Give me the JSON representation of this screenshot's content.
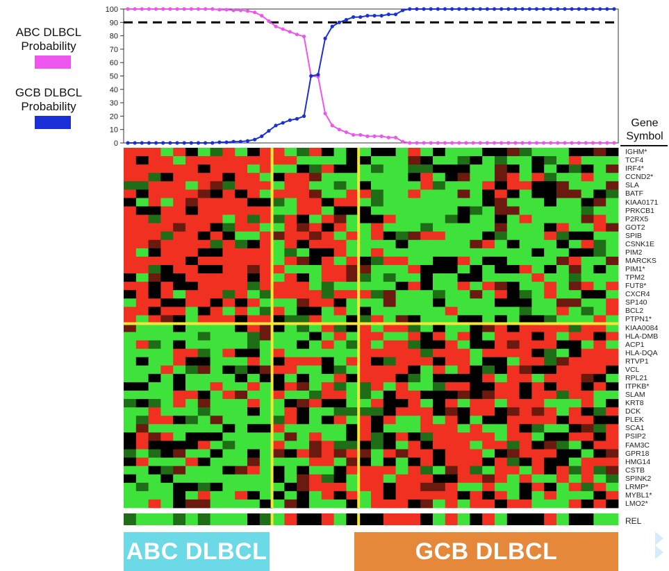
{
  "legend": {
    "abc_label_line1": "ABC DLBCL",
    "abc_label_line2": "Probability",
    "abc_color": "#ee55ee",
    "gcb_label_line1": "GCB DLBCL",
    "gcb_label_line2": "Probability",
    "gcb_color": "#1a2fd6"
  },
  "chart_data": [
    {
      "type": "line",
      "title": "",
      "xlabel": "",
      "ylabel": "",
      "ylim": [
        0,
        100
      ],
      "yticks": [
        0,
        10,
        20,
        30,
        40,
        50,
        60,
        70,
        80,
        90,
        100
      ],
      "threshold": 90,
      "threshold_style": "dashed",
      "x": [
        1,
        2,
        3,
        4,
        5,
        6,
        7,
        8,
        9,
        10,
        11,
        12,
        13,
        14,
        15,
        16,
        17,
        18,
        19,
        20,
        21,
        22,
        23,
        24,
        25,
        26,
        27,
        28,
        29,
        30,
        31,
        32,
        33,
        34,
        35,
        36,
        37,
        38,
        39,
        40,
        41,
        42,
        43,
        44,
        45,
        46,
        47,
        48,
        49,
        50,
        51,
        52,
        53,
        54,
        55,
        56,
        57,
        58,
        59,
        60,
        61,
        62,
        63,
        64,
        65,
        66,
        67,
        68,
        69,
        70
      ],
      "series": [
        {
          "name": "ABC DLBCL Probability",
          "color": "#ee55ee",
          "values": [
            100,
            100,
            100,
            100,
            100,
            100,
            100,
            100,
            100,
            100,
            100,
            100,
            100,
            99.5,
            99.5,
            99,
            99,
            98.5,
            97.5,
            95,
            91,
            87,
            85,
            83,
            81,
            79.5,
            50,
            49.5,
            22,
            13,
            10,
            8,
            6,
            6,
            5,
            5,
            5,
            4,
            4,
            1,
            0,
            0,
            0,
            0,
            0,
            0,
            0,
            0,
            0,
            0,
            0,
            0,
            0,
            0,
            0,
            0,
            0,
            0,
            0,
            0,
            0,
            0,
            0,
            0,
            0,
            0,
            0,
            0,
            0,
            0
          ]
        },
        {
          "name": "GCB DLBCL Probability",
          "color": "#1a2fd6",
          "values": [
            0,
            0,
            0,
            0,
            0,
            0,
            0,
            0,
            0,
            0,
            0,
            0,
            0,
            0.5,
            0.5,
            1,
            1,
            1.5,
            2.5,
            5,
            9,
            13,
            15,
            17,
            18,
            20,
            50,
            51,
            78,
            87,
            90,
            92,
            94,
            94,
            95,
            95,
            95,
            96,
            96,
            99,
            100,
            100,
            100,
            100,
            100,
            100,
            100,
            100,
            100,
            100,
            100,
            100,
            100,
            100,
            100,
            100,
            100,
            100,
            100,
            100,
            100,
            100,
            100,
            100,
            100,
            100,
            100,
            100,
            100,
            100
          ]
        }
      ]
    },
    {
      "type": "heatmap",
      "title": "",
      "xlabel": "",
      "ylabel": "Gene Symbol",
      "rows": [
        "IGHM*",
        "TCF4",
        "IRF4*",
        "CCND2*",
        "SLA",
        "BATF",
        "KIAA0171",
        "PRKCB1",
        "P2RX5",
        "GOT2",
        "SPIB",
        "CSNK1E",
        "PIM2",
        "MARCKS",
        "PIM1*",
        "TPM2",
        "FUT8*",
        "CXCR4",
        "SP140",
        "BCL2",
        "PTPN1*",
        "KIAA0084",
        "HLA-DMB",
        "ACP1",
        "HLA-DQA",
        "RTVP1",
        "VCL",
        "RPL21",
        "ITPKB*",
        "SLAM",
        "KRT8",
        "DCK",
        "PLEK",
        "SCA1",
        "PSIP2",
        "FAM3C",
        "GPR18",
        "HMG14",
        "CSTB",
        "SPINK2",
        "LRMP*",
        "MYBL1*",
        "LMO2*"
      ],
      "columns": 40,
      "column_groups": [
        {
          "name": "ABC DLBCL",
          "count": 12
        },
        {
          "name": "",
          "count": 7
        },
        {
          "name": "GCB DLBCL",
          "count": 21
        }
      ],
      "row_groups": [
        21,
        22
      ],
      "color_scale": [
        "#3fe23a",
        "#000000",
        "#f03020"
      ],
      "extra_row": "REL"
    }
  ],
  "group_labels": {
    "abc": "ABC DLBCL",
    "gcb": "GCB DLBCL"
  },
  "gene_header": {
    "line1": "Gene",
    "line2": "Symbol"
  },
  "colors": {
    "divider": "#f2e63a",
    "high": "#f03020",
    "mid": "#000000",
    "low": "#3fe23a",
    "threshold": "#000000"
  }
}
